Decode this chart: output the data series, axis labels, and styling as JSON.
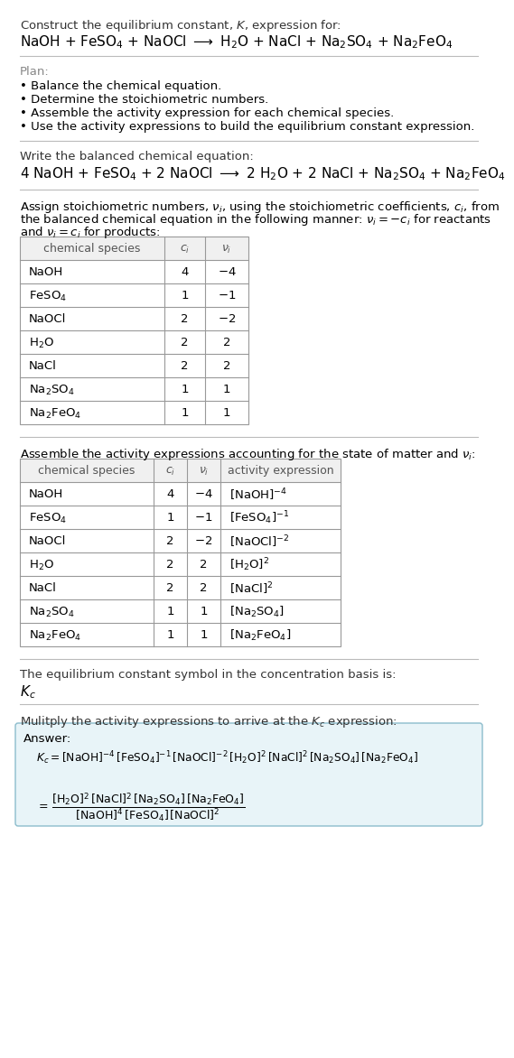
{
  "bg_color": "#ffffff",
  "title_line1": "Construct the equilibrium constant, $K$, expression for:",
  "title_line2": "NaOH + FeSO$_4$ + NaOCl $\\longrightarrow$ H$_2$O + NaCl + Na$_2$SO$_4$ + Na$_2$FeO$_4$",
  "plan_header": "Plan:",
  "plan_items": [
    "• Balance the chemical equation.",
    "• Determine the stoichiometric numbers.",
    "• Assemble the activity expression for each chemical species.",
    "• Use the activity expressions to build the equilibrium constant expression."
  ],
  "balanced_header": "Write the balanced chemical equation:",
  "balanced_eq": "4 NaOH + FeSO$_4$ + 2 NaOCl $\\longrightarrow$ 2 H$_2$O + 2 NaCl + Na$_2$SO$_4$ + Na$_2$FeO$_4$",
  "stoich_line1": "Assign stoichiometric numbers, $\\nu_i$, using the stoichiometric coefficients, $c_i$, from",
  "stoich_line2": "the balanced chemical equation in the following manner: $\\nu_i = -c_i$ for reactants",
  "stoich_line3": "and $\\nu_i = c_i$ for products:",
  "table1_headers": [
    "chemical species",
    "$c_i$",
    "$\\nu_i$"
  ],
  "table1_data": [
    [
      "NaOH",
      "4",
      "$-4$"
    ],
    [
      "FeSO$_4$",
      "1",
      "$-1$"
    ],
    [
      "NaOCl",
      "2",
      "$-2$"
    ],
    [
      "H$_2$O",
      "2",
      "2"
    ],
    [
      "NaCl",
      "2",
      "2"
    ],
    [
      "Na$_2$SO$_4$",
      "1",
      "1"
    ],
    [
      "Na$_2$FeO$_4$",
      "1",
      "1"
    ]
  ],
  "activity_header": "Assemble the activity expressions accounting for the state of matter and $\\nu_i$:",
  "table2_headers": [
    "chemical species",
    "$c_i$",
    "$\\nu_i$",
    "activity expression"
  ],
  "table2_data": [
    [
      "NaOH",
      "4",
      "$-4$",
      "$[\\mathrm{NaOH}]^{-4}$"
    ],
    [
      "FeSO$_4$",
      "1",
      "$-1$",
      "$[\\mathrm{FeSO_4}]^{-1}$"
    ],
    [
      "NaOCl",
      "2",
      "$-2$",
      "$[\\mathrm{NaOCl}]^{-2}$"
    ],
    [
      "H$_2$O",
      "2",
      "2",
      "$[\\mathrm{H_2O}]^{2}$"
    ],
    [
      "NaCl",
      "2",
      "2",
      "$[\\mathrm{NaCl}]^{2}$"
    ],
    [
      "Na$_2$SO$_4$",
      "1",
      "1",
      "$[\\mathrm{Na_2SO_4}]$"
    ],
    [
      "Na$_2$FeO$_4$",
      "1",
      "1",
      "$[\\mathrm{Na_2FeO_4}]$"
    ]
  ],
  "kc_header": "The equilibrium constant symbol in the concentration basis is:",
  "kc_symbol": "$K_c$",
  "multiply_header": "Mulitply the activity expressions to arrive at the $K_c$ expression:",
  "answer_label": "Answer:",
  "answer_line1": "$K_c = [\\mathrm{NaOH}]^{-4}\\,[\\mathrm{FeSO_4}]^{-1}\\,[\\mathrm{NaOCl}]^{-2}\\,[\\mathrm{H_2O}]^{2}\\,[\\mathrm{NaCl}]^{2}\\,[\\mathrm{Na_2SO_4}]\\,[\\mathrm{Na_2FeO_4}]$",
  "answer_eq": "$=\\,\\dfrac{[\\mathrm{H_2O}]^{2}\\,[\\mathrm{NaCl}]^{2}\\,[\\mathrm{Na_2SO_4}]\\,[\\mathrm{Na_2FeO_4}]}{[\\mathrm{NaOH}]^{4}\\,[\\mathrm{FeSO_4}]\\,[\\mathrm{NaOCl}]^{2}}$",
  "answer_box_color": "#e8f4f8",
  "answer_box_border": "#8bbccc",
  "divider_color": "#bbbbbb",
  "table_border_color": "#999999",
  "header_gray_color": "#888888",
  "table_header_bg": "#f0f0f0",
  "body_fontsize": 9.5,
  "chem_eq_fontsize": 11.0,
  "table_fontsize": 9.5
}
